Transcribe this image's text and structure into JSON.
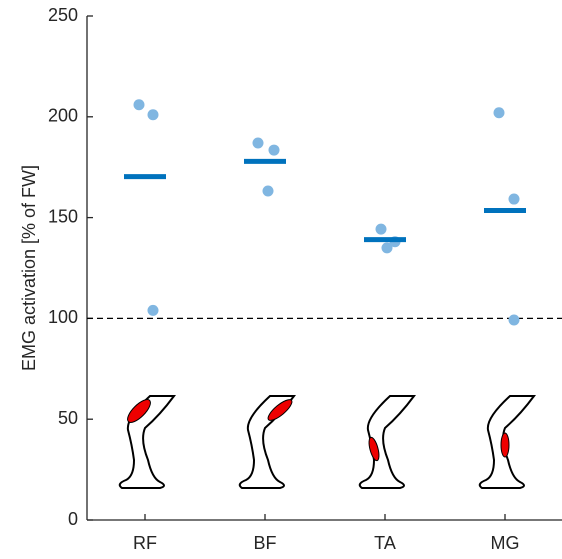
{
  "chart_data": {
    "type": "strip",
    "y_label": "EMG activation [% of FW]",
    "categories": [
      "RF",
      "BF",
      "TA",
      "MG"
    ],
    "points": [
      [
        206,
        201,
        104
      ],
      [
        187,
        183.5,
        163.2
      ],
      [
        144.3,
        138,
        135
      ],
      [
        202,
        159.2,
        99.2
      ]
    ],
    "means": [
      170.3,
      177.9,
      139.1,
      153.5
    ],
    "point_color": "#80b6e1",
    "mean_color": "#0072bd",
    "reference_line": 100,
    "ylim": [
      0,
      250
    ],
    "yticks": [
      0,
      50,
      100,
      150,
      200,
      250
    ]
  }
}
